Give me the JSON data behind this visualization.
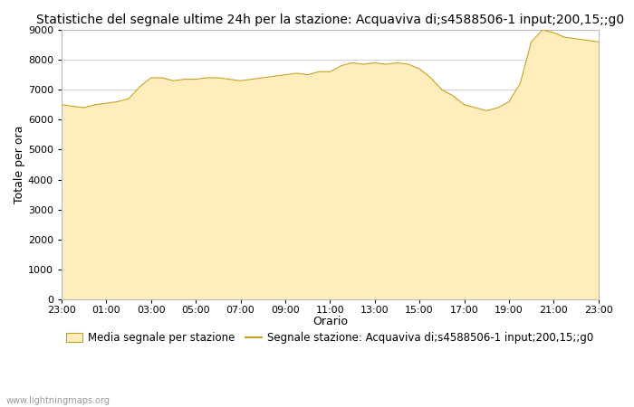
{
  "title": "Statistiche del segnale ultime 24h per la stazione: Acquaviva di;s4588506-1 input;200,15;;g0",
  "xlabel": "Orario",
  "ylabel": "Totale per ora",
  "fill_color": "#FFEEBB",
  "line_color": "#C8A020",
  "bg_color": "#ffffff",
  "grid_color": "#cccccc",
  "ylim": [
    0,
    9000
  ],
  "yticks": [
    0,
    1000,
    2000,
    3000,
    4000,
    5000,
    6000,
    7000,
    8000,
    9000
  ],
  "xtick_labels": [
    "23:00",
    "01:00",
    "03:00",
    "05:00",
    "07:00",
    "09:00",
    "11:00",
    "13:00",
    "15:00",
    "17:00",
    "19:00",
    "21:00",
    "23:00"
  ],
  "legend_fill_label": "Media segnale per stazione",
  "legend_line_label": "Segnale stazione: Acquaviva di;s4588506-1 input;200,15;;g0",
  "watermark": "www.lightningmaps.org",
  "time_x": [
    0,
    0.5,
    1,
    1.5,
    2,
    2.5,
    3,
    3.5,
    4,
    4.5,
    5,
    5.5,
    6,
    6.5,
    7,
    7.5,
    8,
    8.5,
    9,
    9.5,
    10,
    10.5,
    11,
    11.5,
    12,
    12.5,
    13,
    13.5,
    14,
    14.5,
    15,
    15.5,
    16,
    16.5,
    17,
    17.5,
    18,
    18.5,
    19,
    19.5,
    20,
    20.5,
    21,
    21.5,
    22,
    22.5,
    23,
    23.5,
    24
  ],
  "fill_y": [
    6500,
    6450,
    6400,
    6500,
    6550,
    6600,
    6700,
    7100,
    7400,
    7400,
    7300,
    7350,
    7350,
    7400,
    7400,
    7350,
    7300,
    7350,
    7400,
    7450,
    7500,
    7550,
    7500,
    7600,
    7600,
    7800,
    7900,
    7850,
    7900,
    7850,
    7900,
    7850,
    7700,
    7400,
    7000,
    6800,
    6500,
    6400,
    6300,
    6400,
    6600,
    7200,
    8600,
    9000,
    8900,
    8750,
    8700,
    8650,
    8600
  ],
  "title_fontsize": 10,
  "axis_fontsize": 9,
  "tick_fontsize": 8,
  "legend_fontsize": 8.5
}
